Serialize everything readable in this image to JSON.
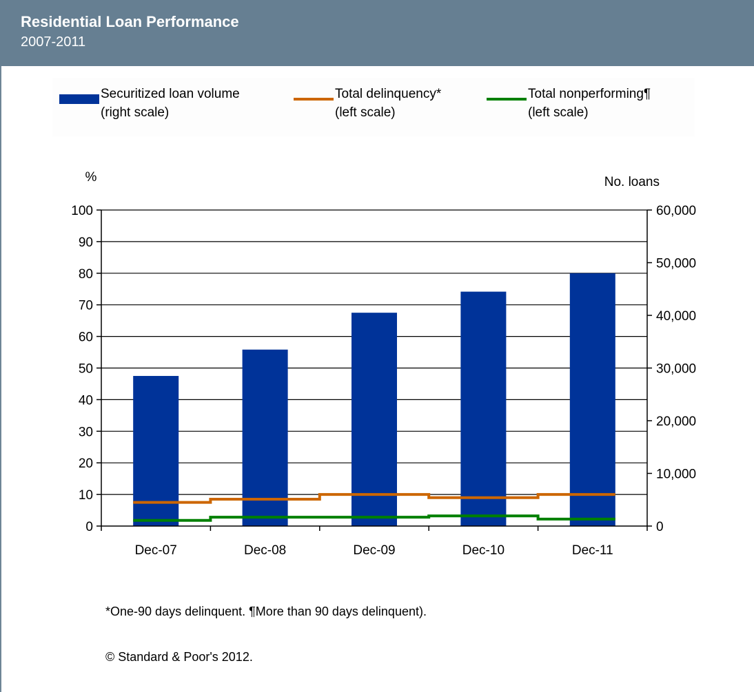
{
  "header": {
    "title": "Residential Loan Performance",
    "subtitle": "2007-2011"
  },
  "legend": {
    "items": [
      {
        "line1": "Securitized loan volume",
        "line2": "(right scale)",
        "color": "#003399",
        "kind": "bar"
      },
      {
        "line1": "Total delinquency*",
        "line2": "(left scale)",
        "color": "#cc6600",
        "kind": "line"
      },
      {
        "line1": "Total nonperforming¶",
        "line2": "(left scale)",
        "color": "#008000",
        "kind": "line"
      }
    ]
  },
  "chart_data": {
    "type": "bar",
    "categories": [
      "Dec-07",
      "Dec-08",
      "Dec-09",
      "Dec-10",
      "Dec-11"
    ],
    "y_left_label": "%",
    "y_right_label": "No. loans",
    "y_left_lim": [
      0,
      100
    ],
    "y_left_ticks": [
      "0",
      "10",
      "20",
      "30",
      "40",
      "50",
      "60",
      "70",
      "80",
      "90",
      "100"
    ],
    "y_right_lim": [
      0,
      60000
    ],
    "y_right_ticks": [
      "0",
      "10,000",
      "20,000",
      "30,000",
      "40,000",
      "50,000",
      "60,000"
    ],
    "grid": true,
    "legend_position": "top",
    "series": [
      {
        "name": "Securitized loan volume (right scale)",
        "type": "bar",
        "axis": "right",
        "color": "#003399",
        "values": [
          28500,
          33500,
          40500,
          44500,
          48000
        ]
      },
      {
        "name": "Total delinquency* (left scale)",
        "type": "line",
        "axis": "left",
        "color": "#cc6600",
        "values": [
          7.5,
          8.5,
          10.0,
          9.0,
          10.0
        ]
      },
      {
        "name": "Total nonperforming¶ (left scale)",
        "type": "line",
        "axis": "left",
        "color": "#008000",
        "values": [
          1.8,
          2.8,
          2.8,
          3.2,
          2.2
        ]
      }
    ]
  },
  "footnotes": {
    "note": "*One-90 days delinquent. ¶More than 90 days delinquent).",
    "copyright": "© Standard & Poor's 2012."
  }
}
